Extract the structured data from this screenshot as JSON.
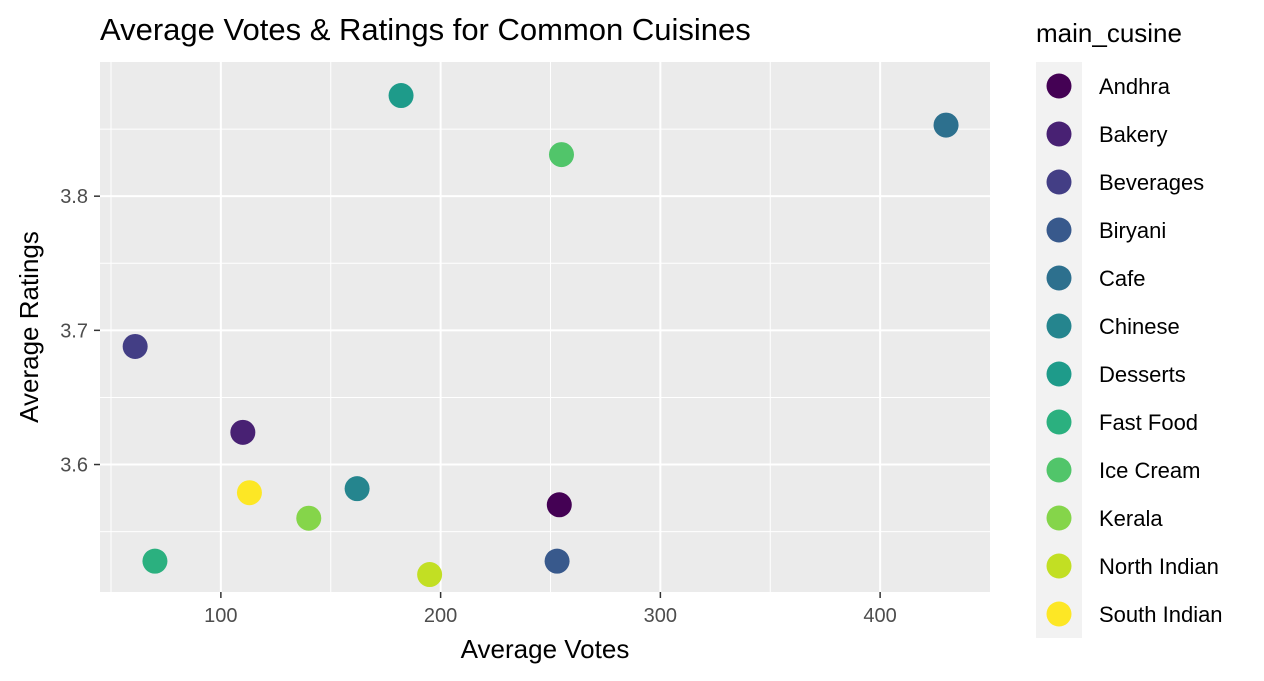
{
  "chart_data": {
    "type": "scatter",
    "title": "Average Votes & Ratings for Common Cuisines",
    "xlabel": "Average Votes",
    "ylabel": "Average Ratings",
    "xlim": [
      45,
      450
    ],
    "ylim": [
      3.505,
      3.9
    ],
    "x_ticks": [
      100,
      200,
      300,
      400
    ],
    "x_minor": [
      50,
      150,
      250,
      350
    ],
    "y_ticks": [
      3.6,
      3.7,
      3.8
    ],
    "y_minor": [
      3.55,
      3.65,
      3.75,
      3.85
    ],
    "grid": true,
    "legend": {
      "title": "main_cusine",
      "position": "right"
    },
    "series": [
      {
        "name": "Andhra",
        "x": 254,
        "y": 3.57,
        "color": "#440154"
      },
      {
        "name": "Bakery",
        "x": 110,
        "y": 3.624,
        "color": "#482173"
      },
      {
        "name": "Beverages",
        "x": 61,
        "y": 3.688,
        "color": "#433E85"
      },
      {
        "name": "Biryani",
        "x": 253,
        "y": 3.528,
        "color": "#38598C"
      },
      {
        "name": "Cafe",
        "x": 430,
        "y": 3.853,
        "color": "#2D708E"
      },
      {
        "name": "Chinese",
        "x": 162,
        "y": 3.582,
        "color": "#25858E"
      },
      {
        "name": "Desserts",
        "x": 182,
        "y": 3.875,
        "color": "#1E9B8A"
      },
      {
        "name": "Fast Food",
        "x": 70,
        "y": 3.528,
        "color": "#2BB07F"
      },
      {
        "name": "Ice Cream",
        "x": 255,
        "y": 3.831,
        "color": "#51C56A"
      },
      {
        "name": "Kerala",
        "x": 140,
        "y": 3.56,
        "color": "#85D54A"
      },
      {
        "name": "North Indian",
        "x": 195,
        "y": 3.518,
        "color": "#C2DF23"
      },
      {
        "name": "South Indian",
        "x": 113,
        "y": 3.579,
        "color": "#FDE725"
      }
    ]
  }
}
